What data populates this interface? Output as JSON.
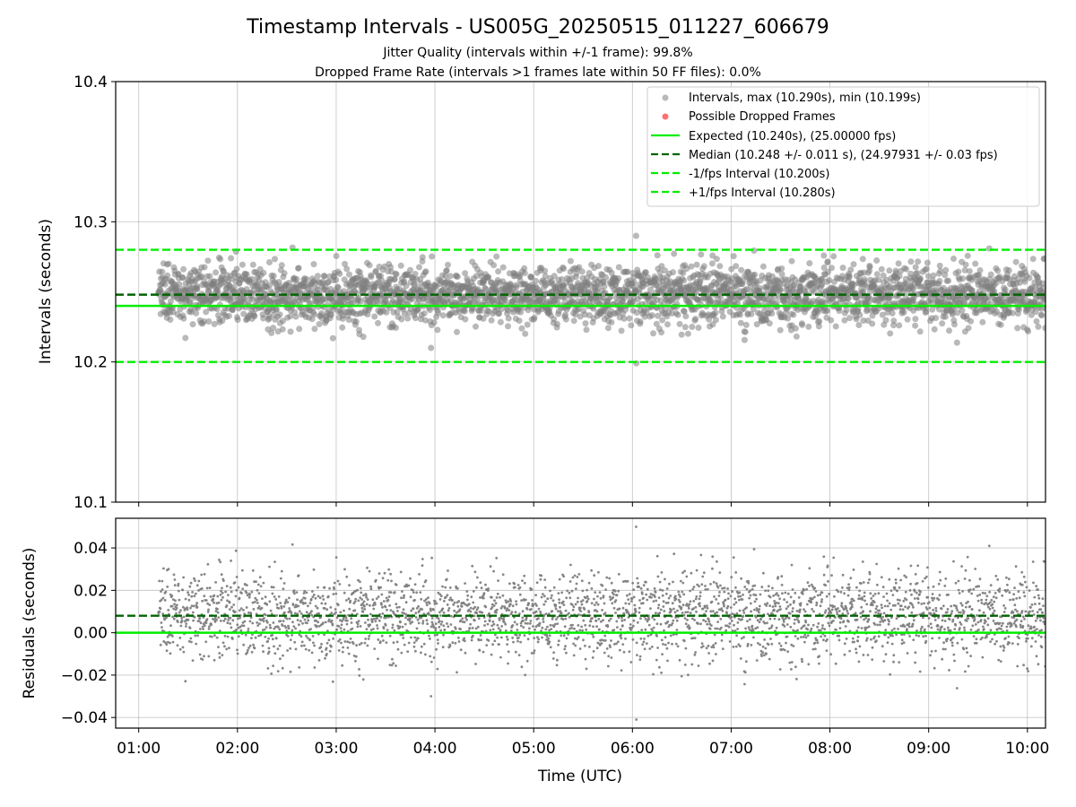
{
  "figure": {
    "title": "Timestamp Intervals - US005G_20250515_011227_606679",
    "subtitle_line1": "Jitter Quality (intervals within +/-1 frame): 99.8%",
    "subtitle_line2": "Dropped Frame Rate (intervals >1 frames late within 50 FF files): 0.0%",
    "xlabel": "Time (UTC)"
  },
  "colors": {
    "points": "#808080",
    "dropped": "#ff4040",
    "expected": "#00ee00",
    "median": "#006400",
    "bounds": "#00ee00",
    "grid": "#b0b0b0"
  },
  "chart_data": [
    {
      "type": "scatter",
      "panel": "top",
      "ylabel": "Intervals (seconds)",
      "ylim": [
        10.1,
        10.4
      ],
      "yticks": [
        10.1,
        10.2,
        10.3,
        10.4
      ],
      "ytick_labels": [
        "10.1",
        "10.2",
        "10.3",
        "10.4"
      ],
      "xlim": [
        "00:46",
        "10:11"
      ],
      "xticks": [
        "01:00",
        "02:00",
        "03:00",
        "04:00",
        "05:00",
        "06:00",
        "07:00",
        "08:00",
        "09:00",
        "10:00"
      ],
      "grid": true,
      "legend_placement": "top-right",
      "series": [
        {
          "name": "Intervals, max (10.290s), min (10.199s)",
          "kind": "points",
          "start": "01:12",
          "end": "10:11",
          "count": 3158,
          "center": 10.248,
          "spread": 0.011,
          "max": 10.29,
          "min": 10.199
        },
        {
          "name": "Possible Dropped Frames",
          "kind": "points",
          "count": 0
        }
      ],
      "reference_lines": [
        {
          "name": "Expected (10.240s), (25.00000 fps)",
          "y": 10.24,
          "style": "solid",
          "color_key": "expected"
        },
        {
          "name": "Median (10.248 +/- 0.011 s), (24.97931 +/- 0.03 fps)",
          "y": 10.248,
          "style": "dashed",
          "color_key": "median"
        },
        {
          "name": "-1/fps Interval (10.200s)",
          "y": 10.2,
          "style": "dashed",
          "color_key": "bounds"
        },
        {
          "name": "+1/fps Interval (10.280s)",
          "y": 10.28,
          "style": "dashed",
          "color_key": "bounds"
        }
      ]
    },
    {
      "type": "scatter",
      "panel": "bottom",
      "ylabel": "Residuals (seconds)",
      "ylim": [
        -0.045,
        0.054
      ],
      "yticks": [
        -0.04,
        -0.02,
        0.0,
        0.02,
        0.04
      ],
      "ytick_labels": [
        "−0.04",
        "−0.02",
        "0.00",
        "0.02",
        "0.04"
      ],
      "xlim": [
        "00:46",
        "10:11"
      ],
      "xticks": [
        "01:00",
        "02:00",
        "03:00",
        "04:00",
        "05:00",
        "06:00",
        "07:00",
        "08:00",
        "09:00",
        "10:00"
      ],
      "xtick_labels": [
        "01:00",
        "02:00",
        "03:00",
        "04:00",
        "05:00",
        "06:00",
        "07:00",
        "08:00",
        "09:00",
        "10:00"
      ],
      "grid": true,
      "series": [
        {
          "kind": "points",
          "start": "01:12",
          "end": "10:11",
          "count": 3158,
          "center": 0.008,
          "spread": 0.011,
          "max": 0.05,
          "min": -0.041
        }
      ],
      "reference_lines": [
        {
          "y": 0.0,
          "style": "solid",
          "color_key": "expected"
        },
        {
          "y": 0.008,
          "style": "dashed",
          "color_key": "median"
        }
      ]
    }
  ]
}
